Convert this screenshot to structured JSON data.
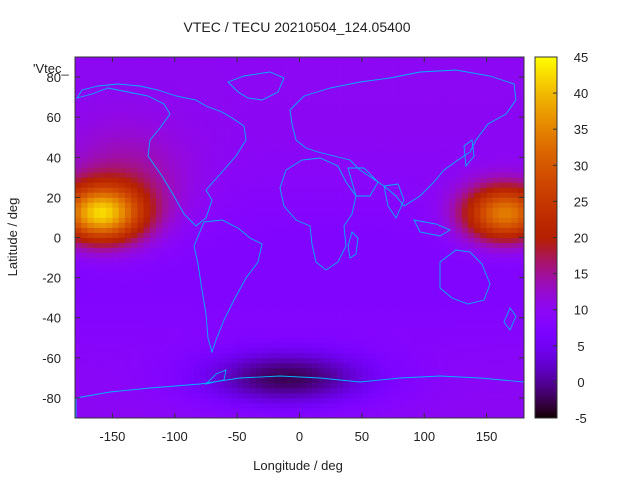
{
  "chart_data": {
    "type": "heatmap",
    "title": "VTEC / TECU 20210504_124.05400",
    "xlabel": "Longitude / deg",
    "ylabel": "Latitude / deg",
    "legend_label": "'Vtec_",
    "xlim": [
      -180,
      180
    ],
    "ylim": [
      -90,
      90
    ],
    "xticks": [
      -150,
      -100,
      -50,
      0,
      50,
      100,
      150
    ],
    "yticks": [
      -80,
      -60,
      -40,
      -20,
      0,
      20,
      40,
      60,
      80
    ],
    "colorbar": {
      "range": [
        -5,
        45
      ],
      "ticks": [
        -5,
        0,
        5,
        10,
        15,
        20,
        25,
        30,
        35,
        40,
        45
      ],
      "palette": "black-purple-red-orange-yellow"
    },
    "features": [
      {
        "name": "equatorial anomaly peak (west)",
        "lon": -160,
        "lat": 12,
        "vtec": 40
      },
      {
        "name": "equatorial anomaly peak (east)",
        "lon": 165,
        "lat": 12,
        "vtec": 36
      },
      {
        "name": "background",
        "vtec": 10
      },
      {
        "name": "southern minimum",
        "lon": -10,
        "lat": -70,
        "vtec": -2
      }
    ]
  },
  "colors": {
    "coastline": "#00b4ff",
    "background": "#ffffff",
    "text": "#222222"
  }
}
